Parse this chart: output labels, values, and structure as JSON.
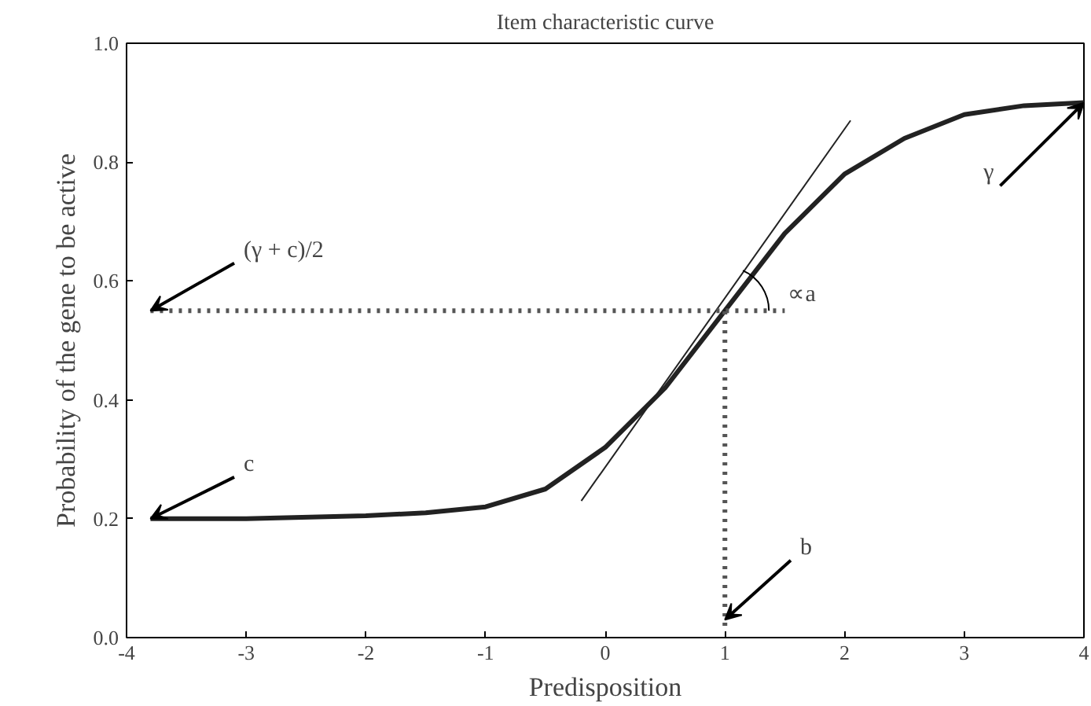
{
  "chart_data": {
    "type": "line",
    "title": "Item characteristic curve",
    "xlabel": "Predisposition",
    "ylabel": "Probability of the gene to be active",
    "xlim": [
      -4,
      4
    ],
    "ylim": [
      0,
      1
    ],
    "xticks": [
      -4,
      -3,
      -2,
      -1,
      0,
      1,
      2,
      3,
      4
    ],
    "yticks": [
      {
        "value": 0,
        "label": "0.0"
      },
      {
        "value": 0.2,
        "label": "0.2"
      },
      {
        "value": 0.4,
        "label": "0.4"
      },
      {
        "value": 0.6,
        "label": "0.6"
      },
      {
        "value": 0.8,
        "label": "0.8"
      },
      {
        "value": 1,
        "label": "1.0"
      }
    ],
    "grid": false,
    "marker": "none",
    "series": [
      {
        "color": "#222222",
        "line_style": "solid",
        "x": [
          -3.8,
          -3,
          -2,
          -1.5,
          -1,
          -0.5,
          0,
          0.5,
          1,
          1.5,
          2,
          2.5,
          3,
          3.5,
          4
        ],
        "values": [
          0.2,
          0.2,
          0.205,
          0.21,
          0.22,
          0.25,
          0.32,
          0.42,
          0.55,
          0.68,
          0.78,
          0.84,
          0.88,
          0.895,
          0.9
        ]
      },
      {
        "color": "#222222",
        "line_style": "solid",
        "x": [
          -0.2,
          2.05
        ],
        "values": [
          0.23,
          0.87
        ]
      },
      {
        "color": "#555555",
        "line_style": "dotted",
        "x": [
          -3.8,
          1.5
        ],
        "values": [
          0.55,
          0.55
        ]
      },
      {
        "color": "#555555",
        "line_style": "dotted",
        "x": [
          1,
          1
        ],
        "values": [
          0.02,
          0.55
        ]
      }
    ],
    "annotations": [
      {
        "text": "(γ + c)/2",
        "x": -3.8,
        "y": 0.55
      },
      {
        "text": "c",
        "x": -3.8,
        "y": 0.2
      },
      {
        "text": "b",
        "x": 1,
        "y": 0.03
      },
      {
        "text": "γ",
        "x": 4,
        "y": 0.9
      },
      {
        "text": "∝a",
        "x": 1.5,
        "y": 0.55
      }
    ]
  }
}
